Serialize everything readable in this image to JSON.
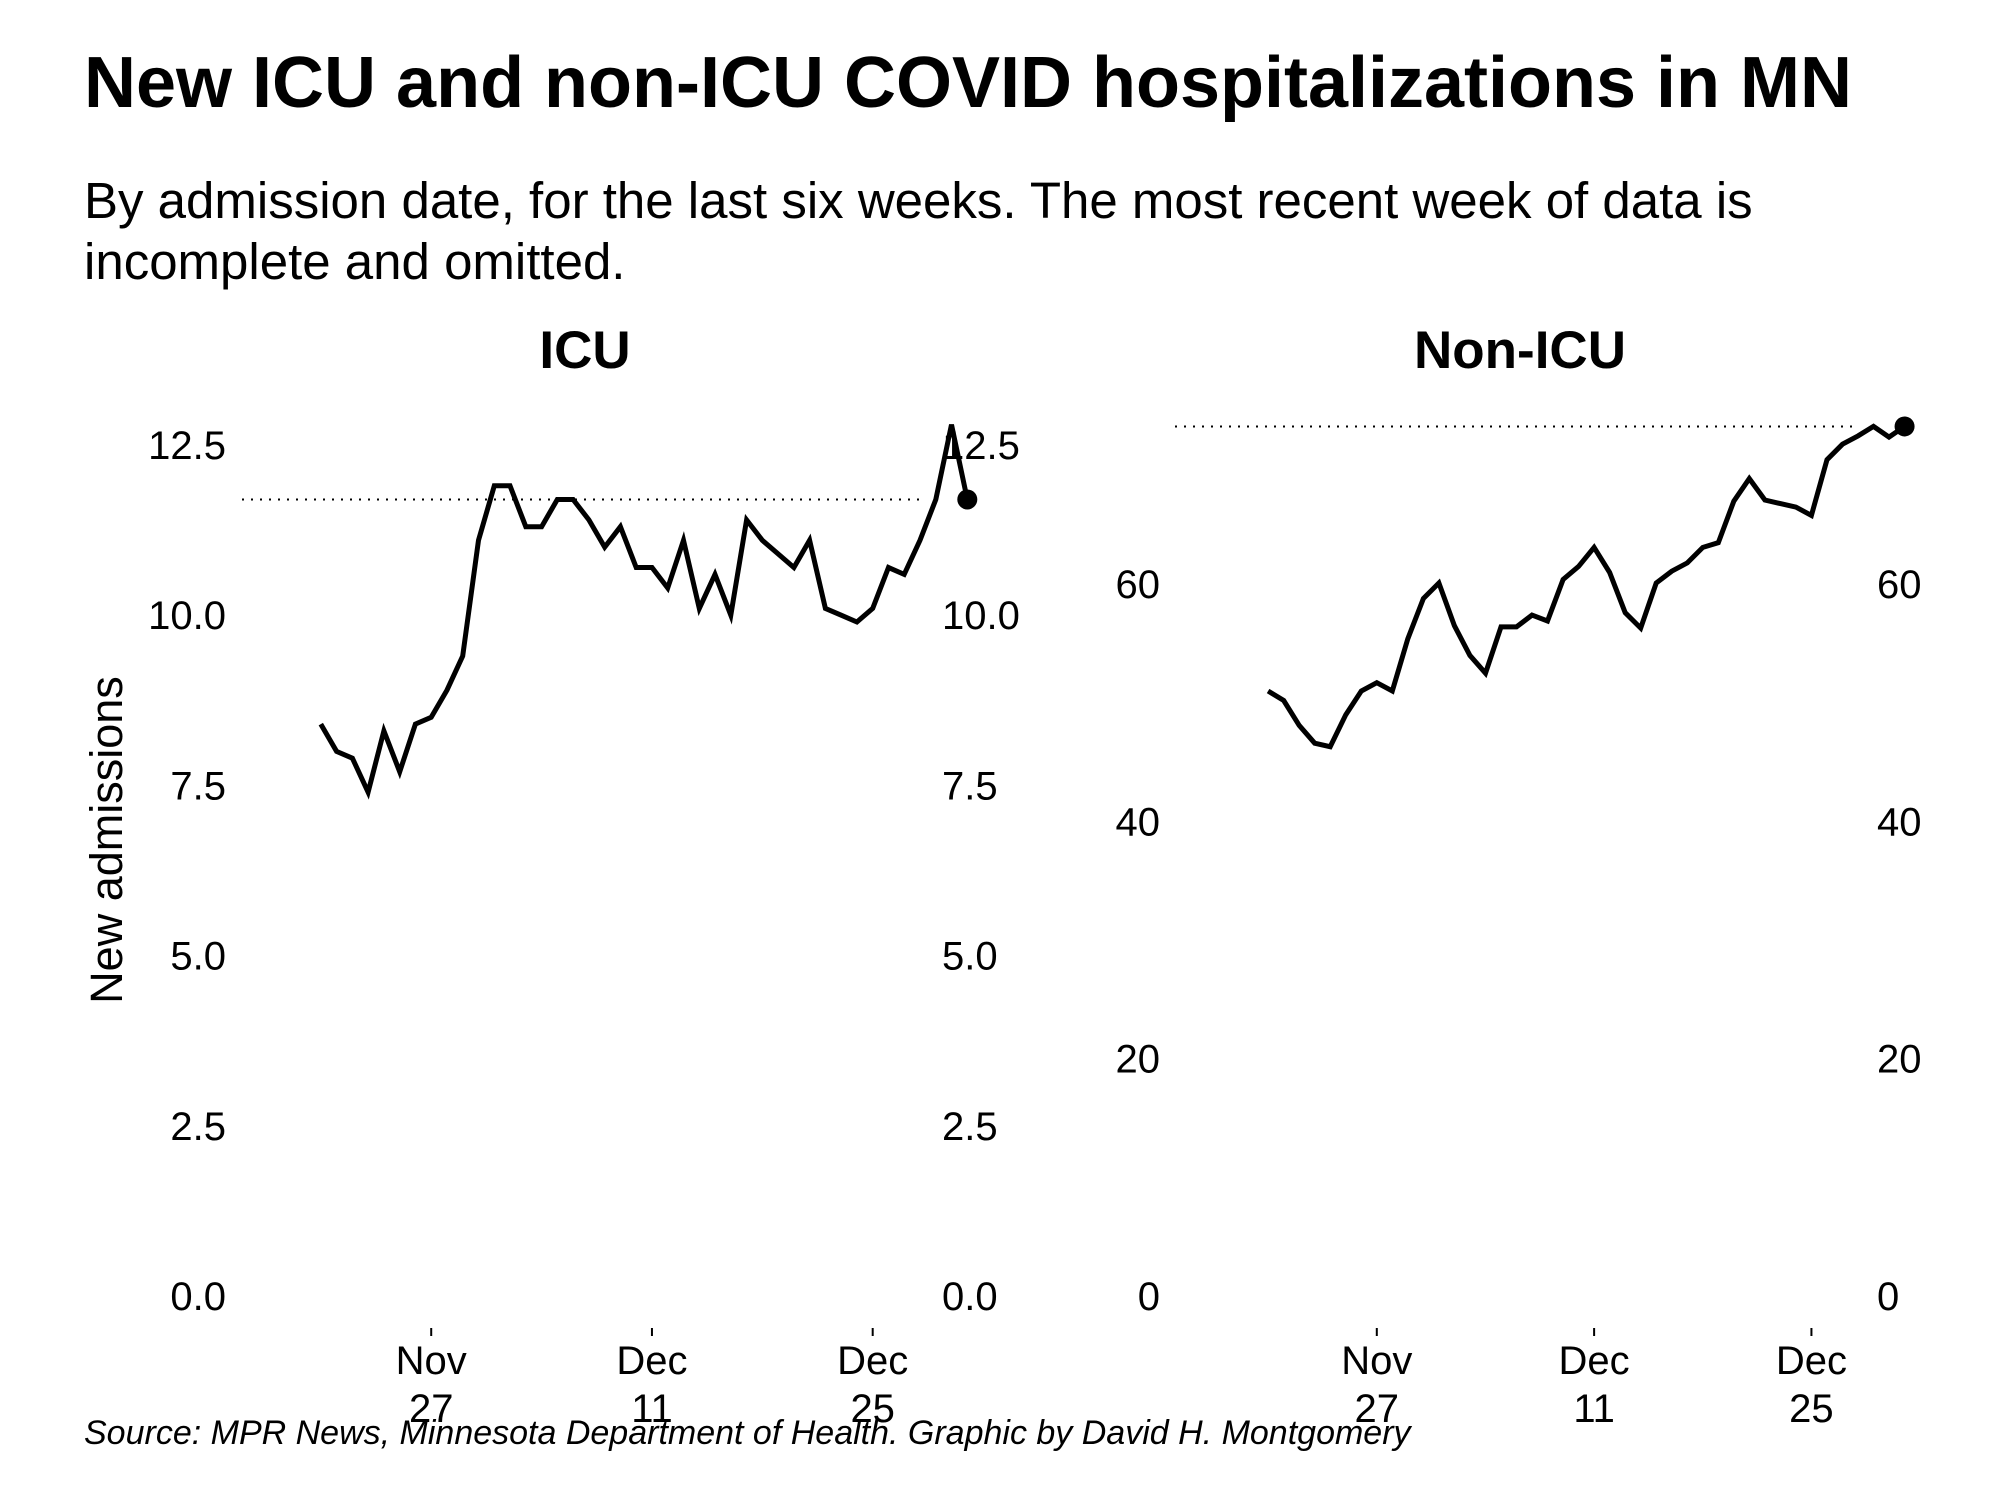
{
  "title": "New ICU and non-ICU COVID hospitalizations in MN",
  "subtitle": "By admission date, for the last six weeks. The most recent week of data is incomplete and omitted.",
  "source": "Source: MPR News, Minnesota Department of Health. Graphic by David H. Montgomery",
  "chart_data": [
    {
      "type": "line",
      "title": "ICU",
      "ylabel": "New admissions",
      "xlabel": "",
      "ylim": [
        0,
        12.5
      ],
      "yticks": [
        "0.0",
        "2.5",
        "5.0",
        "7.5",
        "10.0",
        "12.5"
      ],
      "xticks": [
        {
          "day": 27,
          "line1": "Nov",
          "line2": "27"
        },
        {
          "day": 41,
          "line1": "Dec",
          "line2": "11"
        },
        {
          "day": 55,
          "line1": "Dec",
          "line2": "25"
        }
      ],
      "x_range": [
        15,
        58
      ],
      "x_start_day": 20,
      "values": [
        8.4,
        8.0,
        7.9,
        7.4,
        8.3,
        7.7,
        8.4,
        8.5,
        8.9,
        9.4,
        11.1,
        11.9,
        11.9,
        11.3,
        11.3,
        11.7,
        11.7,
        11.4,
        11.0,
        11.3,
        10.7,
        10.7,
        10.4,
        11.1,
        10.1,
        10.6,
        10.0,
        11.4,
        11.1,
        10.9,
        10.7,
        11.1,
        10.1,
        10.0,
        9.9,
        10.1,
        10.7,
        10.6,
        11.1,
        11.7,
        12.8,
        11.7
      ],
      "reference_line": 11.7,
      "highlight_last": true
    },
    {
      "type": "line",
      "title": "Non-ICU",
      "ylabel": "",
      "xlabel": "",
      "ylim": [
        0,
        73
      ],
      "yticks": [
        "0",
        "20",
        "40",
        "60"
      ],
      "ytick_values": [
        0,
        20,
        40,
        60
      ],
      "xticks": [
        {
          "day": 27,
          "line1": "Nov",
          "line2": "27"
        },
        {
          "day": 41,
          "line1": "Dec",
          "line2": "11"
        },
        {
          "day": 55,
          "line1": "Dec",
          "line2": "25"
        }
      ],
      "x_range": [
        14,
        58
      ],
      "x_start_day": 20,
      "values": [
        51.0,
        50.2,
        48.1,
        46.6,
        46.3,
        49.0,
        51.0,
        51.7,
        51.0,
        55.4,
        58.8,
        60.1,
        56.5,
        54.0,
        52.5,
        56.4,
        56.4,
        57.4,
        56.9,
        60.4,
        61.5,
        63.1,
        61.0,
        57.6,
        56.3,
        60.1,
        61.1,
        61.8,
        63.1,
        63.5,
        67.0,
        68.9,
        67.1,
        66.8,
        66.5,
        65.8,
        70.5,
        71.8,
        72.5,
        73.3,
        72.4,
        73.3
      ],
      "reference_line": 73.3,
      "highlight_last": true
    }
  ]
}
